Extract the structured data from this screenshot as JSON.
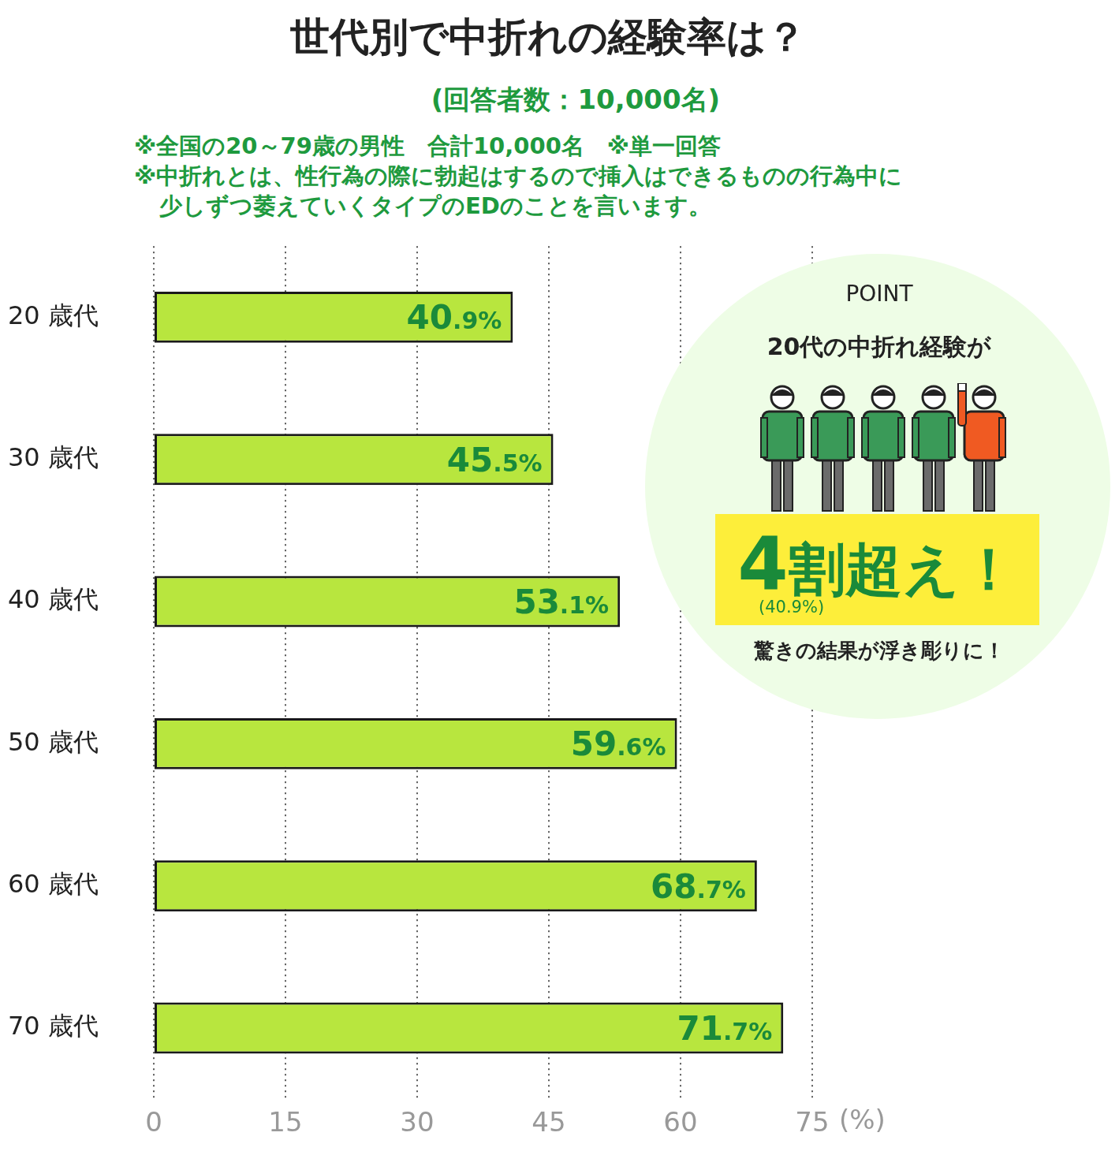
{
  "chart_data": {
    "type": "bar",
    "orientation": "horizontal",
    "title": "世代別で中折れの経験率は？",
    "subtitle": "(回答者数：10,000名)",
    "notes": [
      "※全国の20～79歳の男性　合計10,000名　※単一回答",
      "※中折れとは、性行為の際に勃起はするので挿入はできるものの行為中に",
      "少しずつ萎えていくタイプのEDのことを言います。"
    ],
    "categories": [
      "20 歳代",
      "30 歳代",
      "40 歳代",
      "50 歳代",
      "60 歳代",
      "70 歳代"
    ],
    "values": [
      40.9,
      45.5,
      53.1,
      59.6,
      68.7,
      71.7
    ],
    "value_labels": [
      "40.9%",
      "45.5%",
      "53.1%",
      "59.6%",
      "68.7%",
      "71.7%"
    ],
    "data_labels": true,
    "color": "#b8e63e",
    "xlim": [
      0,
      75
    ],
    "xticks": [
      0,
      15,
      30,
      45,
      60,
      75
    ],
    "xlabel": "(%)",
    "grid": true,
    "annotation": {
      "heading": "POINT",
      "lead": "20代の中折れ経験が",
      "headline": "4割超え！",
      "detail": "(40.9%)",
      "footer": "驚きの結果が浮き彫りに！"
    }
  }
}
